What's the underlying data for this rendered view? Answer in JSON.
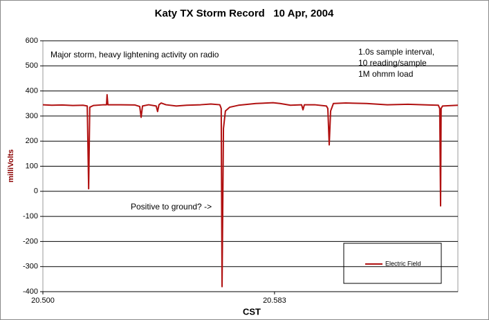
{
  "chart_data": {
    "type": "line",
    "title": "Katy TX Storm Record   10 Apr, 2004",
    "x_label": "CST",
    "y_label": "milliVolts",
    "annotations": [
      "Major storm, heavy lightening activity on radio",
      "Positive to ground? ->"
    ],
    "note_lines": [
      "1.0s sample interval,",
      "10 reading/sample",
      "1M ohmm load"
    ],
    "xlim": [
      20.5,
      20.6487
    ],
    "ylim": [
      -400,
      600
    ],
    "xticks": [
      {
        "value": 20.5,
        "label": "20.500"
      },
      20.583
    ],
    "yticks": [
      -400,
      -300,
      -200,
      -100,
      0,
      100,
      200,
      300,
      400,
      500,
      600
    ],
    "grid": true,
    "legend": "lower right",
    "x": [
      20.5,
      20.5032,
      20.5069,
      20.5107,
      20.5144,
      20.5159,
      20.5164,
      20.5168,
      20.5181,
      20.5218,
      20.5228,
      20.523,
      20.5233,
      20.528,
      20.533,
      20.5347,
      20.5352,
      20.5357,
      20.5379,
      20.5406,
      20.5411,
      20.5416,
      20.5424,
      20.5441,
      20.5478,
      20.5515,
      20.5565,
      20.5602,
      20.5634,
      20.5639,
      20.5642,
      20.5647,
      20.5654,
      20.5669,
      20.5701,
      20.5763,
      20.5825,
      20.585,
      20.5887,
      20.5927,
      20.5932,
      20.5937,
      20.5974,
      20.6016,
      20.6021,
      20.6026,
      20.6031,
      20.6041,
      20.6085,
      20.616,
      20.6234,
      20.6308,
      20.6383,
      20.6417,
      20.6422,
      20.6425,
      20.6427,
      20.6432,
      20.6487
    ],
    "series": [
      {
        "name": "Electric Field",
        "color": "#b01010",
        "values": [
          345,
          343,
          344,
          342,
          343,
          340,
          10,
          335,
          342,
          345,
          345,
          385,
          345,
          345,
          344,
          338,
          295,
          340,
          345,
          340,
          318,
          345,
          352,
          345,
          340,
          343,
          345,
          348,
          345,
          330,
          -380,
          250,
          320,
          335,
          343,
          350,
          353,
          350,
          343,
          345,
          325,
          345,
          345,
          340,
          330,
          185,
          320,
          350,
          352,
          350,
          345,
          347,
          344,
          343,
          330,
          -58,
          330,
          340,
          343
        ]
      }
    ]
  }
}
